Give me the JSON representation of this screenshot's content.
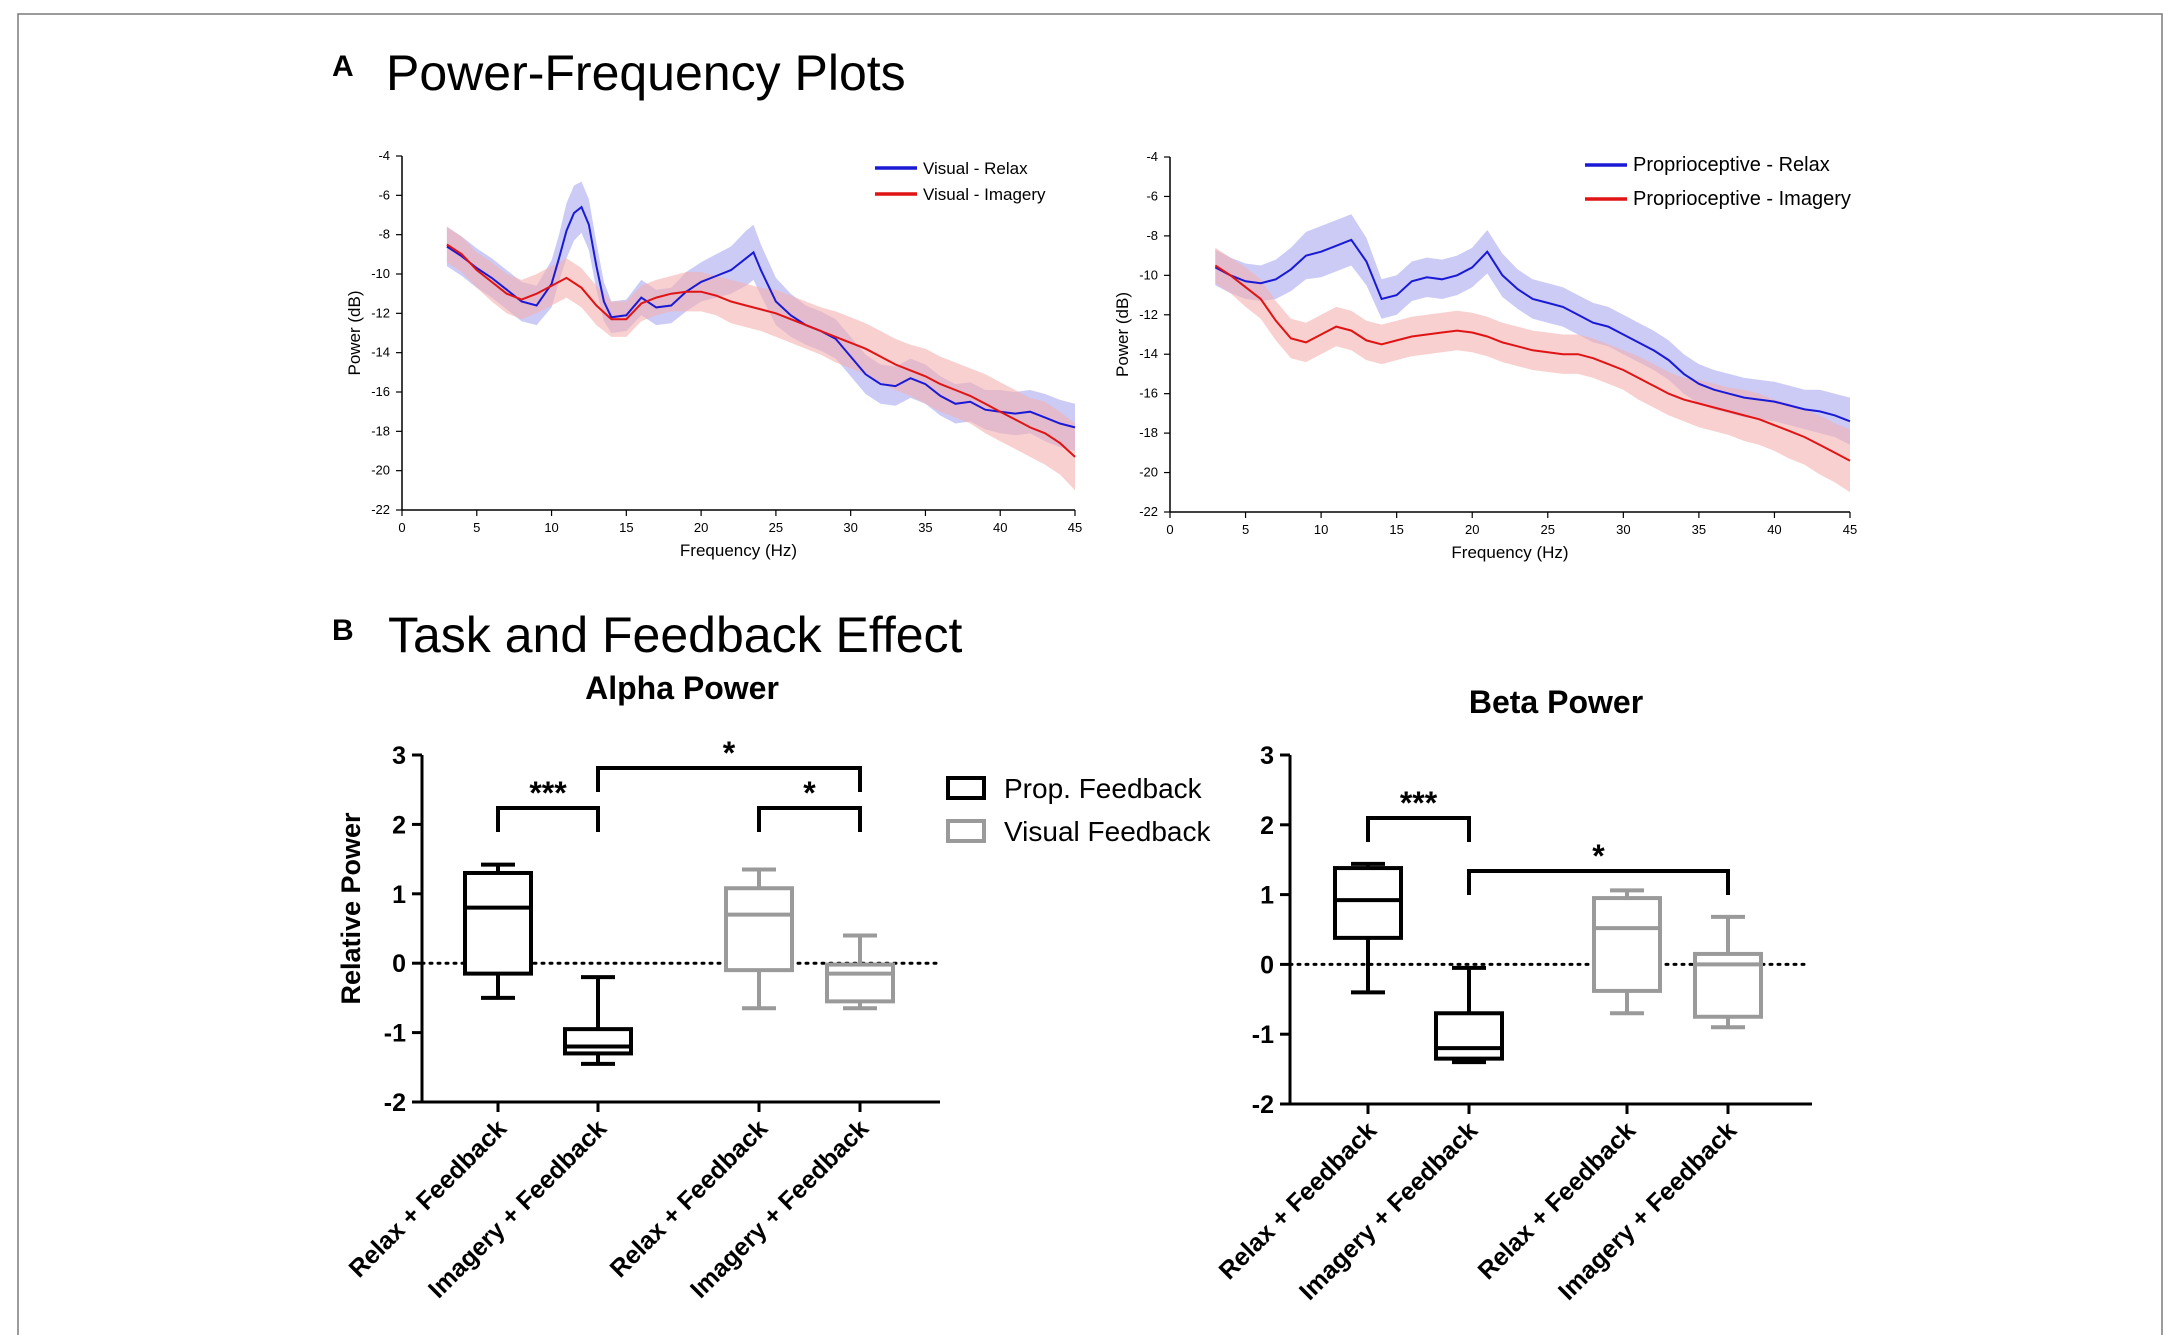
{
  "figure": {
    "panel_a": {
      "letter": "A",
      "title": "Power-Frequency Plots"
    },
    "panel_b": {
      "letter": "B",
      "title": "Task and Feedback Effect"
    }
  },
  "colors": {
    "relax_line": "#1a1ad6",
    "relax_band": "#a9a9f0",
    "imagery_line": "#e01414",
    "imagery_band": "#f5b0b0",
    "prop_box": "#000000",
    "visual_box": "#9a9a9a"
  },
  "chart_data": [
    {
      "type": "line",
      "xlabel": "Frequency (Hz)",
      "ylabel": "Power (dB)",
      "xlim": [
        0,
        45
      ],
      "ylim": [
        -22,
        -4
      ],
      "x_ticks": [
        "0",
        "5",
        "10",
        "15",
        "20",
        "25",
        "30",
        "35",
        "40",
        "45"
      ],
      "y_ticks": [
        "-4",
        "-6",
        "-8",
        "-10",
        "-12",
        "-14",
        "-16",
        "-18",
        "-20",
        "-22"
      ],
      "legend_position": "top-right",
      "series": [
        {
          "name": "Visual - Relax",
          "color": "#1a1ad6",
          "x": [
            3,
            4,
            5,
            6,
            7,
            8,
            9,
            10,
            10.5,
            11,
            11.5,
            12,
            12.5,
            13,
            13.5,
            14,
            15,
            16,
            17,
            18,
            19,
            20,
            21,
            22,
            23,
            23.5,
            24,
            25,
            26,
            27,
            28,
            29,
            30,
            31,
            32,
            33,
            34,
            35,
            36,
            37,
            38,
            39,
            40,
            41,
            42,
            43,
            44,
            45
          ],
          "y": [
            -8.6,
            -9.1,
            -9.7,
            -10.2,
            -10.8,
            -11.4,
            -11.6,
            -10.5,
            -9.2,
            -7.8,
            -6.9,
            -6.6,
            -7.5,
            -9.6,
            -11.4,
            -12.2,
            -12.1,
            -11.2,
            -11.7,
            -11.6,
            -10.9,
            -10.4,
            -10.1,
            -9.8,
            -9.2,
            -8.9,
            -9.8,
            -11.4,
            -12.1,
            -12.6,
            -12.9,
            -13.3,
            -14.2,
            -15.1,
            -15.6,
            -15.7,
            -15.3,
            -15.6,
            -16.2,
            -16.6,
            -16.5,
            -16.9,
            -17.0,
            -17.1,
            -17.0,
            -17.3,
            -17.6,
            -17.8
          ],
          "band": [
            1.0,
            1.0,
            1.0,
            1.0,
            1.0,
            1.0,
            1.0,
            1.2,
            1.2,
            1.4,
            1.4,
            1.3,
            1.3,
            1.2,
            1.0,
            0.8,
            0.8,
            0.9,
            0.9,
            0.9,
            1.0,
            1.0,
            1.1,
            1.2,
            1.4,
            1.4,
            1.3,
            1.2,
            1.1,
            1.0,
            1.0,
            1.0,
            1.0,
            1.0,
            1.0,
            1.0,
            1.0,
            1.0,
            1.0,
            1.0,
            1.0,
            1.0,
            1.1,
            1.1,
            1.1,
            1.2,
            1.2,
            1.2
          ]
        },
        {
          "name": "Visual - Imagery",
          "color": "#e01414",
          "x": [
            3,
            4,
            5,
            6,
            7,
            8,
            9,
            10,
            11,
            12,
            13,
            14,
            15,
            16,
            17,
            18,
            19,
            20,
            21,
            22,
            23,
            24,
            25,
            26,
            27,
            28,
            29,
            30,
            31,
            32,
            33,
            34,
            35,
            36,
            37,
            38,
            39,
            40,
            41,
            42,
            43,
            44,
            45
          ],
          "y": [
            -8.5,
            -9.0,
            -9.8,
            -10.4,
            -11.0,
            -11.3,
            -11.0,
            -10.6,
            -10.2,
            -10.7,
            -11.6,
            -12.3,
            -12.3,
            -11.5,
            -11.2,
            -11.0,
            -10.9,
            -10.9,
            -11.1,
            -11.4,
            -11.6,
            -11.8,
            -12.0,
            -12.3,
            -12.6,
            -12.9,
            -13.2,
            -13.5,
            -13.8,
            -14.2,
            -14.6,
            -14.9,
            -15.2,
            -15.6,
            -15.9,
            -16.2,
            -16.6,
            -17.0,
            -17.4,
            -17.8,
            -18.1,
            -18.6,
            -19.3
          ],
          "band": [
            0.9,
            0.9,
            0.9,
            1.0,
            1.0,
            1.0,
            1.0,
            1.0,
            1.0,
            1.0,
            1.0,
            0.9,
            0.9,
            0.9,
            0.9,
            0.9,
            1.0,
            1.0,
            1.0,
            1.1,
            1.1,
            1.1,
            1.2,
            1.2,
            1.2,
            1.2,
            1.3,
            1.3,
            1.3,
            1.3,
            1.3,
            1.3,
            1.4,
            1.4,
            1.4,
            1.4,
            1.5,
            1.5,
            1.5,
            1.5,
            1.6,
            1.6,
            1.7
          ]
        }
      ]
    },
    {
      "type": "line",
      "xlabel": "Frequency (Hz)",
      "ylabel": "Power (dB)",
      "xlim": [
        0,
        45
      ],
      "ylim": [
        -22,
        -4
      ],
      "x_ticks": [
        "0",
        "5",
        "10",
        "15",
        "20",
        "25",
        "30",
        "35",
        "40",
        "45"
      ],
      "y_ticks": [
        "-4",
        "-6",
        "-8",
        "-10",
        "-12",
        "-14",
        "-16",
        "-18",
        "-20",
        "-22"
      ],
      "legend_position": "top-right",
      "series": [
        {
          "name": "Proprioceptive - Relax",
          "color": "#1a1ad6",
          "x": [
            3,
            4,
            5,
            6,
            7,
            8,
            9,
            10,
            11,
            12,
            13,
            14,
            15,
            16,
            17,
            18,
            19,
            20,
            21,
            22,
            23,
            24,
            25,
            26,
            27,
            28,
            29,
            30,
            31,
            32,
            33,
            34,
            35,
            36,
            37,
            38,
            39,
            40,
            41,
            42,
            43,
            44,
            45
          ],
          "y": [
            -9.6,
            -10.0,
            -10.3,
            -10.4,
            -10.2,
            -9.7,
            -9.0,
            -8.8,
            -8.5,
            -8.2,
            -9.3,
            -11.2,
            -11.0,
            -10.3,
            -10.1,
            -10.2,
            -10.0,
            -9.6,
            -8.8,
            -10.0,
            -10.7,
            -11.2,
            -11.4,
            -11.6,
            -12.0,
            -12.4,
            -12.6,
            -13.0,
            -13.4,
            -13.8,
            -14.3,
            -15.0,
            -15.5,
            -15.8,
            -16.0,
            -16.2,
            -16.3,
            -16.4,
            -16.6,
            -16.8,
            -16.9,
            -17.1,
            -17.4
          ],
          "band": [
            0.9,
            0.9,
            0.9,
            0.9,
            1.0,
            1.1,
            1.2,
            1.3,
            1.3,
            1.3,
            1.2,
            1.0,
            1.0,
            1.0,
            1.0,
            1.0,
            1.0,
            1.0,
            1.1,
            1.1,
            1.0,
            1.0,
            1.0,
            1.0,
            1.0,
            1.0,
            1.0,
            1.0,
            1.0,
            1.0,
            1.0,
            1.0,
            1.0,
            1.0,
            1.0,
            1.0,
            1.0,
            1.0,
            1.0,
            1.0,
            1.1,
            1.1,
            1.2
          ]
        },
        {
          "name": "Proprioceptive - Imagery",
          "color": "#e01414",
          "x": [
            3,
            4,
            5,
            6,
            7,
            8,
            9,
            10,
            11,
            12,
            13,
            14,
            15,
            16,
            17,
            18,
            19,
            20,
            21,
            22,
            23,
            24,
            25,
            26,
            27,
            28,
            29,
            30,
            31,
            32,
            33,
            34,
            35,
            36,
            37,
            38,
            39,
            40,
            41,
            42,
            43,
            44,
            45
          ],
          "y": [
            -9.5,
            -10.0,
            -10.6,
            -11.2,
            -12.3,
            -13.2,
            -13.4,
            -13.0,
            -12.6,
            -12.8,
            -13.3,
            -13.5,
            -13.3,
            -13.1,
            -13.0,
            -12.9,
            -12.8,
            -12.9,
            -13.1,
            -13.4,
            -13.6,
            -13.8,
            -13.9,
            -14.0,
            -14.0,
            -14.2,
            -14.5,
            -14.8,
            -15.2,
            -15.6,
            -16.0,
            -16.3,
            -16.5,
            -16.7,
            -16.9,
            -17.1,
            -17.3,
            -17.6,
            -17.9,
            -18.2,
            -18.6,
            -19.0,
            -19.4
          ],
          "band": [
            0.9,
            0.9,
            1.0,
            1.0,
            1.0,
            1.0,
            1.0,
            1.0,
            1.0,
            1.0,
            1.0,
            1.0,
            1.0,
            1.0,
            1.0,
            1.0,
            1.0,
            1.0,
            1.0,
            1.0,
            1.0,
            1.0,
            1.0,
            1.0,
            1.0,
            1.0,
            1.0,
            1.0,
            1.1,
            1.1,
            1.1,
            1.1,
            1.2,
            1.2,
            1.2,
            1.3,
            1.3,
            1.3,
            1.4,
            1.4,
            1.5,
            1.5,
            1.6
          ]
        }
      ]
    },
    {
      "type": "box",
      "title": "Alpha Power",
      "ylabel": "Relative Power",
      "ylim": [
        -2,
        3
      ],
      "y_ticks": [
        "3",
        "2",
        "1",
        "0",
        "-1",
        "-2"
      ],
      "reference_line": 0,
      "categories": [
        "Relax + Feedback",
        "Imagery + Feedback",
        "Relax + Feedback",
        "Imagery + Feedback"
      ],
      "boxes": [
        {
          "group": "Prop. Feedback",
          "min": -0.5,
          "q1": -0.15,
          "median": 0.8,
          "q3": 1.3,
          "max": 1.42
        },
        {
          "group": "Prop. Feedback",
          "min": -1.45,
          "q1": -1.3,
          "median": -1.2,
          "q3": -0.95,
          "max": -0.2
        },
        {
          "group": "Visual Feedback",
          "min": -0.65,
          "q1": -0.1,
          "median": 0.7,
          "q3": 1.08,
          "max": 1.35
        },
        {
          "group": "Visual Feedback",
          "min": -0.65,
          "q1": -0.55,
          "median": -0.15,
          "q3": -0.02,
          "max": 0.4
        }
      ],
      "significance": [
        {
          "from": 0,
          "to": 1,
          "label": "***"
        },
        {
          "from": 1,
          "to": 3,
          "label": "*"
        },
        {
          "from": 2,
          "to": 3,
          "label": "*"
        }
      ],
      "legend": [
        {
          "name": "Prop. Feedback",
          "color": "#000000"
        },
        {
          "name": "Visual Feedback",
          "color": "#9a9a9a"
        }
      ]
    },
    {
      "type": "box",
      "title": "Beta Power",
      "ylim": [
        -2,
        3
      ],
      "y_ticks": [
        "3",
        "2",
        "1",
        "0",
        "-1",
        "-2"
      ],
      "reference_line": 0,
      "categories": [
        "Relax + Feedback",
        "Imagery + Feedback",
        "Relax + Feedback",
        "Imagery + Feedback"
      ],
      "boxes": [
        {
          "group": "Prop. Feedback",
          "min": -0.4,
          "q1": 0.38,
          "median": 0.92,
          "q3": 1.38,
          "max": 1.44
        },
        {
          "group": "Prop. Feedback",
          "min": -1.4,
          "q1": -1.35,
          "median": -1.2,
          "q3": -0.7,
          "max": -0.05
        },
        {
          "group": "Visual Feedback",
          "min": -0.7,
          "q1": -0.38,
          "median": 0.52,
          "q3": 0.95,
          "max": 1.06
        },
        {
          "group": "Visual Feedback",
          "min": -0.9,
          "q1": -0.75,
          "median": 0.0,
          "q3": 0.15,
          "max": 0.68
        }
      ],
      "significance": [
        {
          "from": 0,
          "to": 1,
          "label": "***"
        },
        {
          "from": 1,
          "to": 3,
          "label": "*"
        }
      ]
    }
  ]
}
